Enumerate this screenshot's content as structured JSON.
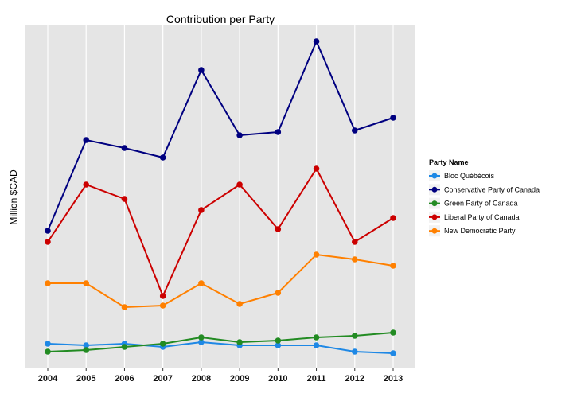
{
  "chart_data": {
    "type": "line",
    "title": "Contribution per Party",
    "xlabel": "",
    "ylabel": "Million $CAD",
    "x": [
      "2004",
      "2005",
      "2006",
      "2007",
      "2008",
      "2009",
      "2010",
      "2011",
      "2012",
      "2013"
    ],
    "ylim": [
      0,
      21.5
    ],
    "y_ticks_shown": false,
    "grid": "vertical-only",
    "legend": {
      "title": "Party Name",
      "placement": "right"
    },
    "series": [
      {
        "name": "Bloc Québécois",
        "color": "#1E88E5",
        "values": [
          1.5,
          1.4,
          1.5,
          1.3,
          1.6,
          1.4,
          1.4,
          1.4,
          1.0,
          0.9
        ]
      },
      {
        "name": "Conservative Party of Canada",
        "color": "#000080",
        "values": [
          8.6,
          14.3,
          13.8,
          13.2,
          18.7,
          14.6,
          14.8,
          20.5,
          14.9,
          15.7
        ]
      },
      {
        "name": "Green Party of Canada",
        "color": "#228B22",
        "values": [
          1.0,
          1.1,
          1.3,
          1.5,
          1.9,
          1.6,
          1.7,
          1.9,
          2.0,
          2.2
        ]
      },
      {
        "name": "Liberal Party of Canada",
        "color": "#CC0000",
        "values": [
          7.9,
          11.5,
          10.6,
          4.5,
          9.9,
          11.5,
          8.7,
          12.5,
          7.9,
          9.4
        ]
      },
      {
        "name": "New Democratic Party",
        "color": "#FF8000",
        "values": [
          5.3,
          5.3,
          3.8,
          3.9,
          5.3,
          4.0,
          4.7,
          7.1,
          6.8,
          6.4
        ]
      }
    ]
  }
}
